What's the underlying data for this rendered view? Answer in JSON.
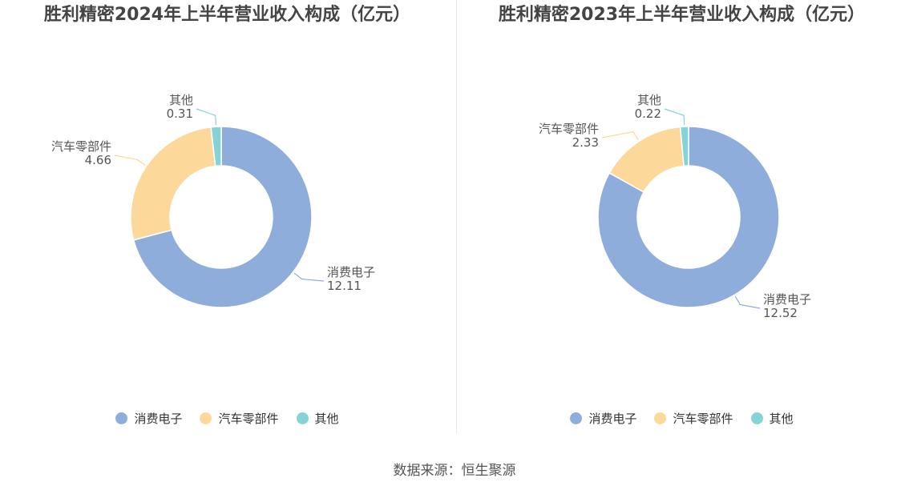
{
  "colors": {
    "消费电子": "#8fadda",
    "汽车零部件": "#fdd89b",
    "其他": "#86d3d7"
  },
  "chart_data": [
    {
      "type": "pie",
      "title": "胜利精密2024年上半年营业收入构成（亿元）",
      "categories": [
        "消费电子",
        "汽车零部件",
        "其他"
      ],
      "values": [
        12.11,
        4.66,
        0.31
      ],
      "value_labels": [
        "12.11",
        "4.66",
        "0.31"
      ],
      "legend": "bottom"
    },
    {
      "type": "pie",
      "title": "胜利精密2023年上半年营业收入构成（亿元）",
      "categories": [
        "消费电子",
        "汽车零部件",
        "其他"
      ],
      "values": [
        12.52,
        2.33,
        0.22
      ],
      "value_labels": [
        "12.52",
        "2.33",
        "0.22"
      ],
      "legend": "bottom"
    }
  ],
  "source": "数据来源：恒生聚源"
}
